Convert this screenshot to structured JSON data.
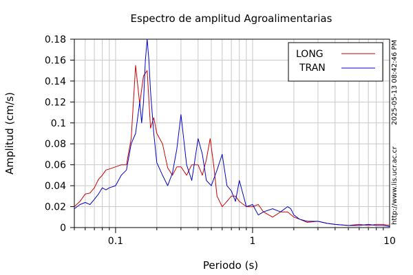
{
  "chart_data": {
    "type": "line",
    "title": "Espectro de amplitud Agroalimentarias",
    "xlabel": "Periodo (s)",
    "ylabel": "Amplitud (cm/s)",
    "x_scale": "log",
    "xlim": [
      0.05,
      10
    ],
    "ylim": [
      0,
      0.18
    ],
    "x_ticks": [
      "0.1",
      "1",
      "10"
    ],
    "y_ticks": [
      "0",
      "0.02",
      "0.04",
      "0.06",
      "0.08",
      "0.1",
      "0.12",
      "0.14",
      "0.16",
      "0.18"
    ],
    "grid": true,
    "legend_position": "top-right",
    "timestamp": "2025-05-13 08:42:46 PM",
    "url": "http://www.lis.ucr.ac.cr",
    "series": [
      {
        "name": "LONG",
        "color": "#cc0000",
        "x": [
          0.05,
          0.055,
          0.06,
          0.065,
          0.07,
          0.075,
          0.08,
          0.085,
          0.09,
          0.1,
          0.11,
          0.12,
          0.13,
          0.14,
          0.15,
          0.155,
          0.16,
          0.17,
          0.18,
          0.19,
          0.2,
          0.22,
          0.24,
          0.26,
          0.28,
          0.3,
          0.33,
          0.36,
          0.4,
          0.43,
          0.46,
          0.49,
          0.52,
          0.55,
          0.6,
          0.65,
          0.7,
          0.75,
          0.8,
          0.9,
          1.0,
          1.1,
          1.2,
          1.4,
          1.6,
          1.8,
          2.0,
          2.2,
          2.5,
          3.0,
          3.5,
          4.0,
          5.0,
          6.0,
          7.0,
          8.0,
          9.0,
          10.0
        ],
        "y": [
          0.02,
          0.025,
          0.032,
          0.033,
          0.038,
          0.046,
          0.05,
          0.055,
          0.056,
          0.058,
          0.06,
          0.06,
          0.085,
          0.155,
          0.118,
          0.132,
          0.145,
          0.15,
          0.095,
          0.105,
          0.09,
          0.08,
          0.057,
          0.05,
          0.058,
          0.058,
          0.05,
          0.06,
          0.06,
          0.05,
          0.065,
          0.085,
          0.06,
          0.03,
          0.02,
          0.025,
          0.03,
          0.03,
          0.025,
          0.02,
          0.02,
          0.022,
          0.015,
          0.01,
          0.015,
          0.015,
          0.01,
          0.008,
          0.005,
          0.006,
          0.004,
          0.003,
          0.002,
          0.003,
          0.002,
          0.003,
          0.003,
          0.002
        ]
      },
      {
        "name": "TRAN",
        "color": "#0000cc",
        "x": [
          0.05,
          0.055,
          0.06,
          0.065,
          0.07,
          0.075,
          0.08,
          0.085,
          0.09,
          0.1,
          0.11,
          0.12,
          0.13,
          0.14,
          0.15,
          0.155,
          0.16,
          0.165,
          0.17,
          0.175,
          0.18,
          0.19,
          0.2,
          0.22,
          0.24,
          0.26,
          0.28,
          0.3,
          0.33,
          0.36,
          0.4,
          0.43,
          0.46,
          0.5,
          0.55,
          0.6,
          0.65,
          0.7,
          0.75,
          0.8,
          0.9,
          1.0,
          1.1,
          1.2,
          1.4,
          1.6,
          1.8,
          1.9,
          2.0,
          2.2,
          2.5,
          3.0,
          3.5,
          4.0,
          5.0,
          6.0,
          7.0,
          8.0,
          9.0,
          10.0
        ],
        "y": [
          0.018,
          0.022,
          0.024,
          0.022,
          0.027,
          0.032,
          0.038,
          0.036,
          0.038,
          0.04,
          0.05,
          0.055,
          0.08,
          0.09,
          0.12,
          0.1,
          0.12,
          0.16,
          0.18,
          0.16,
          0.13,
          0.09,
          0.062,
          0.05,
          0.04,
          0.052,
          0.075,
          0.108,
          0.06,
          0.045,
          0.085,
          0.07,
          0.045,
          0.04,
          0.055,
          0.07,
          0.04,
          0.035,
          0.025,
          0.045,
          0.02,
          0.022,
          0.012,
          0.015,
          0.018,
          0.015,
          0.02,
          0.018,
          0.012,
          0.008,
          0.006,
          0.006,
          0.004,
          0.003,
          0.002,
          0.002,
          0.003,
          0.002,
          0.002,
          0.001
        ]
      }
    ]
  }
}
